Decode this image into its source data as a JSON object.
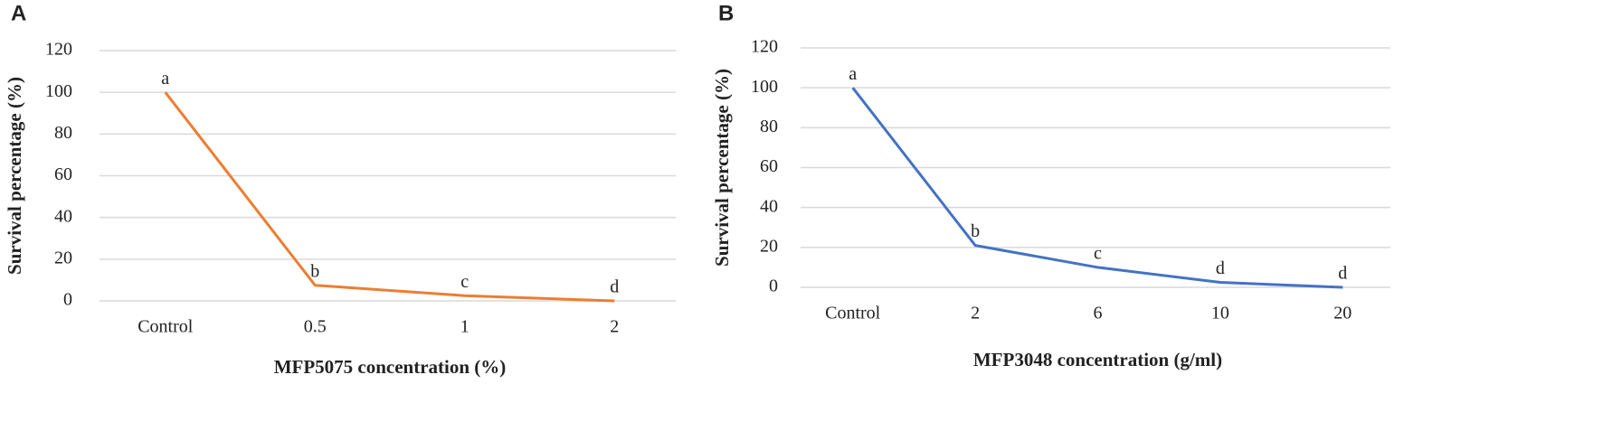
{
  "chart_data": [
    {
      "type": "line",
      "panel": "A",
      "x_label": "MFP5075 concentration (%)",
      "y_label": "Survival percentage (%)",
      "categories": [
        "Control",
        "0.5",
        "1",
        "2"
      ],
      "series": [
        {
          "color": "#ed7d31",
          "values": [
            100,
            7.5,
            2.5,
            0
          ]
        }
      ],
      "annotations": [
        "a",
        "b",
        "c",
        "d"
      ],
      "ylim": [
        0,
        120
      ],
      "yticks": [
        0,
        20,
        40,
        60,
        80,
        100,
        120
      ],
      "grid": true
    },
    {
      "type": "line",
      "panel": "B",
      "x_label": "MFP3048 concentration (g/ml)",
      "y_label": "Survival percentage (%)",
      "categories": [
        "Control",
        "2",
        "6",
        "10",
        "20"
      ],
      "series": [
        {
          "color": "#4472c4",
          "values": [
            100,
            21,
            10,
            2.5,
            0
          ]
        }
      ],
      "annotations": [
        "a",
        "b",
        "c",
        "d",
        "d"
      ],
      "ylim": [
        0,
        120
      ],
      "yticks": [
        0,
        20,
        40,
        60,
        80,
        100,
        120
      ],
      "grid": true
    }
  ]
}
